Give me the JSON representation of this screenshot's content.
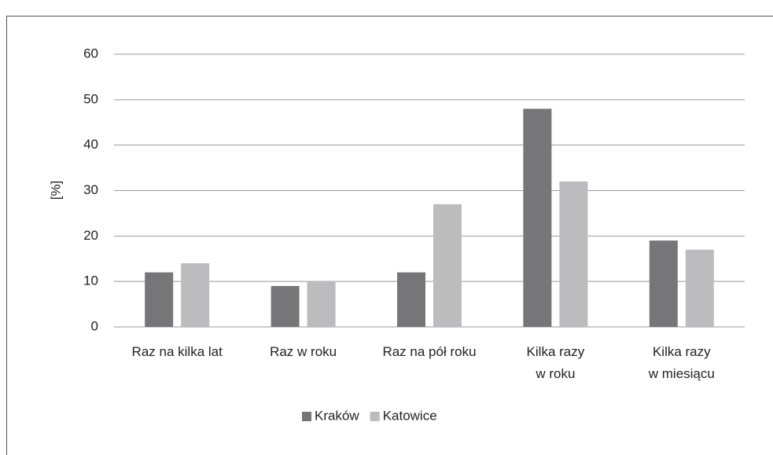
{
  "chart_data": {
    "type": "bar",
    "y_label": "[%]",
    "categories": [
      [
        "Raz na kilka lat"
      ],
      [
        "Raz w roku"
      ],
      [
        "Raz na pół roku"
      ],
      [
        "Kilka razy",
        "w roku"
      ],
      [
        "Kilka razy",
        "w miesiącu"
      ]
    ],
    "series": [
      {
        "name": "Kraków",
        "color": "#767679",
        "values": [
          12,
          9,
          12,
          48,
          19
        ]
      },
      {
        "name": "Katowice",
        "color": "#bcbcbe",
        "values": [
          14,
          10,
          27,
          32,
          17
        ]
      }
    ],
    "ylim": [
      0,
      60
    ],
    "yticks": [
      0,
      10,
      20,
      30,
      40,
      50,
      60
    ],
    "grid": true,
    "legend": "bottom"
  }
}
